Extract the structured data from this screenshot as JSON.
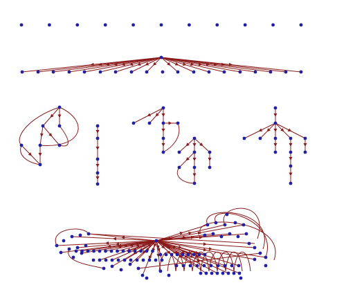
{
  "colors": {
    "background": "#ffffff",
    "node": "#1f1fa8",
    "edge": "#8b1a1a",
    "arrow": "#8b1a1a"
  },
  "graphs": [
    {
      "name": "isolated-node-row",
      "node_count": 11,
      "edge_count": 0
    },
    {
      "name": "star-graph",
      "node_count": 19,
      "edge_count": 18
    },
    {
      "name": "tree-with-back-edges-left",
      "node_count": 12,
      "edge_count": 14
    },
    {
      "name": "tree-middle",
      "node_count": 13,
      "edge_count": 15
    },
    {
      "name": "tree-right",
      "node_count": 11,
      "edge_count": 10
    },
    {
      "name": "dense-cluster-graph",
      "node_count": 100,
      "edge_count": 150
    }
  ]
}
